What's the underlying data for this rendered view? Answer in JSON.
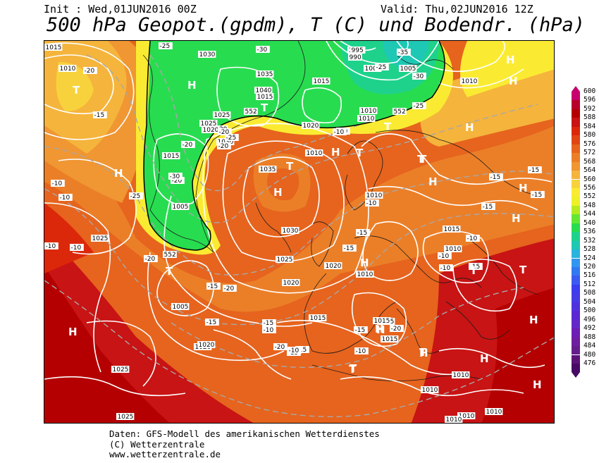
{
  "header": {
    "init": "Init : Wed,01JUN2016 00Z",
    "valid": "Valid: Thu,02JUN2016 12Z",
    "title": "500 hPa Geopot.(gpdm), T (C) und Bodendr. (hPa)"
  },
  "footer": {
    "line1": "Daten: GFS-Modell des amerikanischen Wetterdienstes",
    "line2": "(C) Wetterzentrale",
    "line3": "www.wetterzentrale.de"
  },
  "legend": {
    "levels": [
      "600",
      "596",
      "592",
      "588",
      "584",
      "580",
      "576",
      "572",
      "568",
      "564",
      "560",
      "556",
      "552",
      "548",
      "544",
      "540",
      "536",
      "532",
      "528",
      "524",
      "520",
      "516",
      "512",
      "508",
      "504",
      "500",
      "496",
      "492",
      "488",
      "484",
      "480",
      "476"
    ],
    "colors": [
      "#c8006e",
      "#b8002c",
      "#b40000",
      "#c81414",
      "#dc280a",
      "#e04614",
      "#e6641e",
      "#eb7f28",
      "#f09632",
      "#f5b43c",
      "#f8d23c",
      "#faeb32",
      "#eef028",
      "#b4eb1e",
      "#64e632",
      "#28dc50",
      "#1ed28c",
      "#1ec8b4",
      "#28b4dc",
      "#3296f0",
      "#3278f0",
      "#3c5af0",
      "#3c3cf0",
      "#463ce6",
      "#5032dc",
      "#5a28d2",
      "#6428c8",
      "#6e1eb4",
      "#6e1ea0",
      "#641e8c",
      "#5a1478",
      "#460a64"
    ]
  },
  "map": {
    "pressure_labels": [
      "1015",
      "1010",
      "1030",
      "1035",
      "1040",
      "1025",
      "1020",
      "1015",
      "1005",
      "995",
      "990",
      "1000",
      "1005",
      "1010",
      "1030",
      "1025",
      "1020",
      "1015",
      "1005",
      "1020",
      "1010",
      "1035",
      "1030",
      "1025",
      "1020",
      "1010",
      "1015",
      "1025",
      "1020",
      "1015",
      "1015",
      "1010",
      "1010",
      "1010",
      "1010",
      "1005",
      "1020",
      "1015",
      "1010",
      "1010",
      "1025",
      "1010",
      "1015",
      "1020",
      "1015",
      "1010",
      "1025",
      "1010"
    ],
    "temp_labels": [
      "-20",
      "-25",
      "-30",
      "-25",
      "-30",
      "-35",
      "-25",
      "-20",
      "-15",
      "-20",
      "-25",
      "-20",
      "-20",
      "-25",
      "-20",
      "-30",
      "-20",
      "-15",
      "-20",
      "-15",
      "-15",
      "-10",
      "-10",
      "-10",
      "-15",
      "-15",
      "-15",
      "-15",
      "-10",
      "-15",
      "-15",
      "-10",
      "-10",
      "-15",
      "-10",
      "-10",
      "-10",
      "-10",
      "-10",
      "-15",
      "-20",
      "-20",
      "-15",
      "-15",
      "-10"
    ],
    "height_labels": [
      "552",
      "552",
      "552"
    ],
    "highs_lows": [
      "T",
      "H",
      "H",
      "T",
      "H",
      "H",
      "H",
      "T",
      "T",
      "H",
      "T",
      "H",
      "H",
      "H",
      "T",
      "T",
      "H",
      "T",
      "H",
      "H",
      "H",
      "H",
      "H",
      "T",
      "T",
      "T",
      "H",
      "T",
      "H",
      "H",
      "T"
    ]
  }
}
